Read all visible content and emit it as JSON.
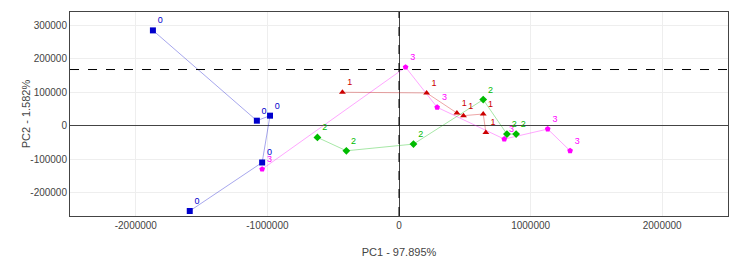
{
  "chart_data": {
    "type": "scatter",
    "xlabel": "PC1 - 97.895%",
    "ylabel": "PC2 - 1.582%",
    "xlim": [
      -2500000,
      2500000
    ],
    "ylim": [
      -270000,
      340000
    ],
    "xticks": [
      -2000000,
      -1000000,
      0,
      1000000,
      2000000
    ],
    "yticks": [
      -200000,
      -100000,
      0,
      100000,
      200000,
      300000
    ],
    "grid": true,
    "reference_lines": [
      {
        "axis": "y",
        "value": 168000,
        "line_style": "dashed"
      },
      {
        "axis": "x",
        "value": 0,
        "line_style": "dashed"
      }
    ],
    "series": [
      {
        "color": "#0000cc",
        "marker": "square",
        "x": [
          -1870000,
          -1080000,
          -980000,
          -1040000,
          -1590000
        ],
        "y": [
          285000,
          15000,
          30000,
          -110000,
          -255000
        ],
        "labels": [
          "0",
          "0",
          "0",
          "0",
          "0"
        ]
      },
      {
        "color": "#ff00ff",
        "marker": "pentagon",
        "x": [
          -1040000,
          50000,
          290000,
          800000,
          1130000,
          1300000
        ],
        "y": [
          -130000,
          175000,
          55000,
          -40000,
          -10000,
          -75000
        ],
        "labels": [
          "3",
          "3",
          "3",
          "3",
          "3",
          "3"
        ]
      },
      {
        "color": "#00bb00",
        "marker": "diamond",
        "x": [
          -620000,
          -400000,
          110000,
          640000,
          820000,
          890000
        ],
        "y": [
          -35000,
          -75000,
          -55000,
          78000,
          -25000,
          -25000
        ],
        "labels": [
          "2",
          "2",
          "2",
          "2",
          "2",
          "2"
        ]
      },
      {
        "color": "#cc0000",
        "marker": "triangle-up",
        "x": [
          -430000,
          210000,
          440000,
          490000,
          640000,
          660000
        ],
        "y": [
          100000,
          98000,
          38000,
          30000,
          35000,
          -20000
        ],
        "labels": [
          "1",
          "1",
          "1",
          "1",
          "1",
          "1"
        ]
      }
    ]
  }
}
